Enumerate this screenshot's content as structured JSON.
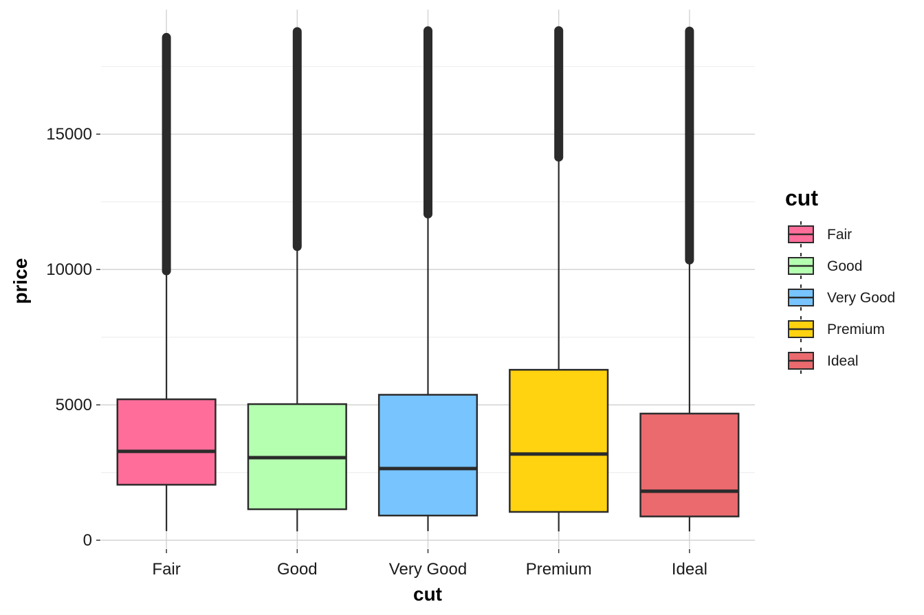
{
  "chart_data": {
    "type": "boxplot",
    "xlabel": "cut",
    "ylabel": "price",
    "ylim": [
      -300,
      19600
    ],
    "yticks": [
      0,
      5000,
      10000,
      15000
    ],
    "y_minor_gridlines": [
      2500,
      7500,
      12500,
      17500
    ],
    "categories": [
      "Fair",
      "Good",
      "Very Good",
      "Premium",
      "Ideal"
    ],
    "colors": [
      "#FF6E9B",
      "#B5FFB1",
      "#77C4FF",
      "#FFD30F",
      "#EA6A6E"
    ],
    "series": [
      {
        "name": "Fair",
        "whisker_low": 337,
        "q1": 2050,
        "median": 3282,
        "q3": 5206,
        "whisker_high": 9950,
        "outliers_range": [
          9950,
          18574
        ]
      },
      {
        "name": "Good",
        "whisker_low": 327,
        "q1": 1145,
        "median": 3050,
        "q3": 5028,
        "whisker_high": 10850,
        "outliers_range": [
          10850,
          18788
        ]
      },
      {
        "name": "Very Good",
        "whisker_low": 336,
        "q1": 912,
        "median": 2648,
        "q3": 5373,
        "whisker_high": 12050,
        "outliers_range": [
          12050,
          18818
        ]
      },
      {
        "name": "Premium",
        "whisker_low": 326,
        "q1": 1046,
        "median": 3185,
        "q3": 6296,
        "whisker_high": 14150,
        "outliers_range": [
          14150,
          18823
        ]
      },
      {
        "name": "Ideal",
        "whisker_low": 326,
        "q1": 878,
        "median": 1810,
        "q3": 4678,
        "whisker_high": 10350,
        "outliers_range": [
          10350,
          18806
        ]
      }
    ],
    "legend": {
      "title": "cut",
      "position": "right",
      "entries": [
        "Fair",
        "Good",
        "Very Good",
        "Premium",
        "Ideal"
      ]
    }
  }
}
